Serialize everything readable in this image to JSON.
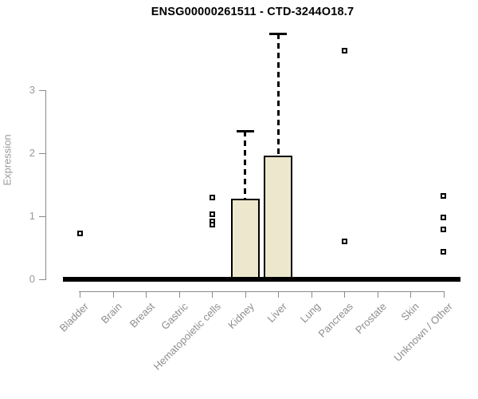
{
  "chart_data": {
    "type": "boxplot",
    "title": "ENSG00000261511 - CTD-3244O18.7",
    "ylabel": "Expression",
    "xlabel": "",
    "yticks": [
      0,
      1,
      2,
      3
    ],
    "ylim": [
      0,
      3.95
    ],
    "grid": false,
    "legend": false,
    "categories": [
      "Bladder",
      "Brain",
      "Breast",
      "Gastric",
      "Hematopoietic cells",
      "Kidney",
      "Liver",
      "Lung",
      "Pancreas",
      "Prostate",
      "Skin",
      "Unknown / Other"
    ],
    "boxes": [
      {
        "label": "Bladder",
        "median": 0,
        "q1": 0,
        "q3": 0,
        "whisker_low": 0,
        "whisker_high": 0,
        "outliers": [
          0.72
        ]
      },
      {
        "label": "Brain",
        "median": 0,
        "q1": 0,
        "q3": 0,
        "whisker_low": 0,
        "whisker_high": 0,
        "outliers": []
      },
      {
        "label": "Breast",
        "median": 0,
        "q1": 0,
        "q3": 0,
        "whisker_low": 0,
        "whisker_high": 0,
        "outliers": []
      },
      {
        "label": "Gastric",
        "median": 0,
        "q1": 0,
        "q3": 0,
        "whisker_low": 0,
        "whisker_high": 0,
        "outliers": []
      },
      {
        "label": "Hematopoietic cells",
        "median": 0,
        "q1": 0,
        "q3": 0,
        "whisker_low": 0,
        "whisker_high": 0,
        "outliers": [
          1.29,
          1.03,
          0.91,
          0.86
        ]
      },
      {
        "label": "Kidney",
        "median": 0,
        "q1": 0,
        "q3": 1.27,
        "whisker_low": 0,
        "whisker_high": 2.35,
        "outliers": []
      },
      {
        "label": "Liver",
        "median": 0,
        "q1": 0,
        "q3": 1.95,
        "whisker_low": 0,
        "whisker_high": 3.89,
        "outliers": []
      },
      {
        "label": "Lung",
        "median": 0,
        "q1": 0,
        "q3": 0,
        "whisker_low": 0,
        "whisker_high": 0,
        "outliers": []
      },
      {
        "label": "Pancreas",
        "median": 0,
        "q1": 0,
        "q3": 0,
        "whisker_low": 0,
        "whisker_high": 0,
        "outliers": [
          3.62,
          0.59
        ]
      },
      {
        "label": "Prostate",
        "median": 0,
        "q1": 0,
        "q3": 0,
        "whisker_low": 0,
        "whisker_high": 0,
        "outliers": []
      },
      {
        "label": "Skin",
        "median": 0,
        "q1": 0,
        "q3": 0,
        "whisker_low": 0,
        "whisker_high": 0,
        "outliers": []
      },
      {
        "label": "Unknown / Other",
        "median": 0,
        "q1": 0,
        "q3": 0,
        "whisker_low": 0,
        "whisker_high": 0,
        "outliers": [
          1.32,
          0.97,
          0.78,
          0.43
        ]
      }
    ],
    "colors": {
      "box_fill": "#EDE8CD",
      "box_border": "#000000",
      "median": "#000000",
      "whisker": "#000000",
      "outlier_stroke": "#000000",
      "axis_line": "#8a8a8a",
      "tick_text": "#8e8e8e",
      "title_text": "#000000",
      "background": "#ffffff"
    }
  }
}
